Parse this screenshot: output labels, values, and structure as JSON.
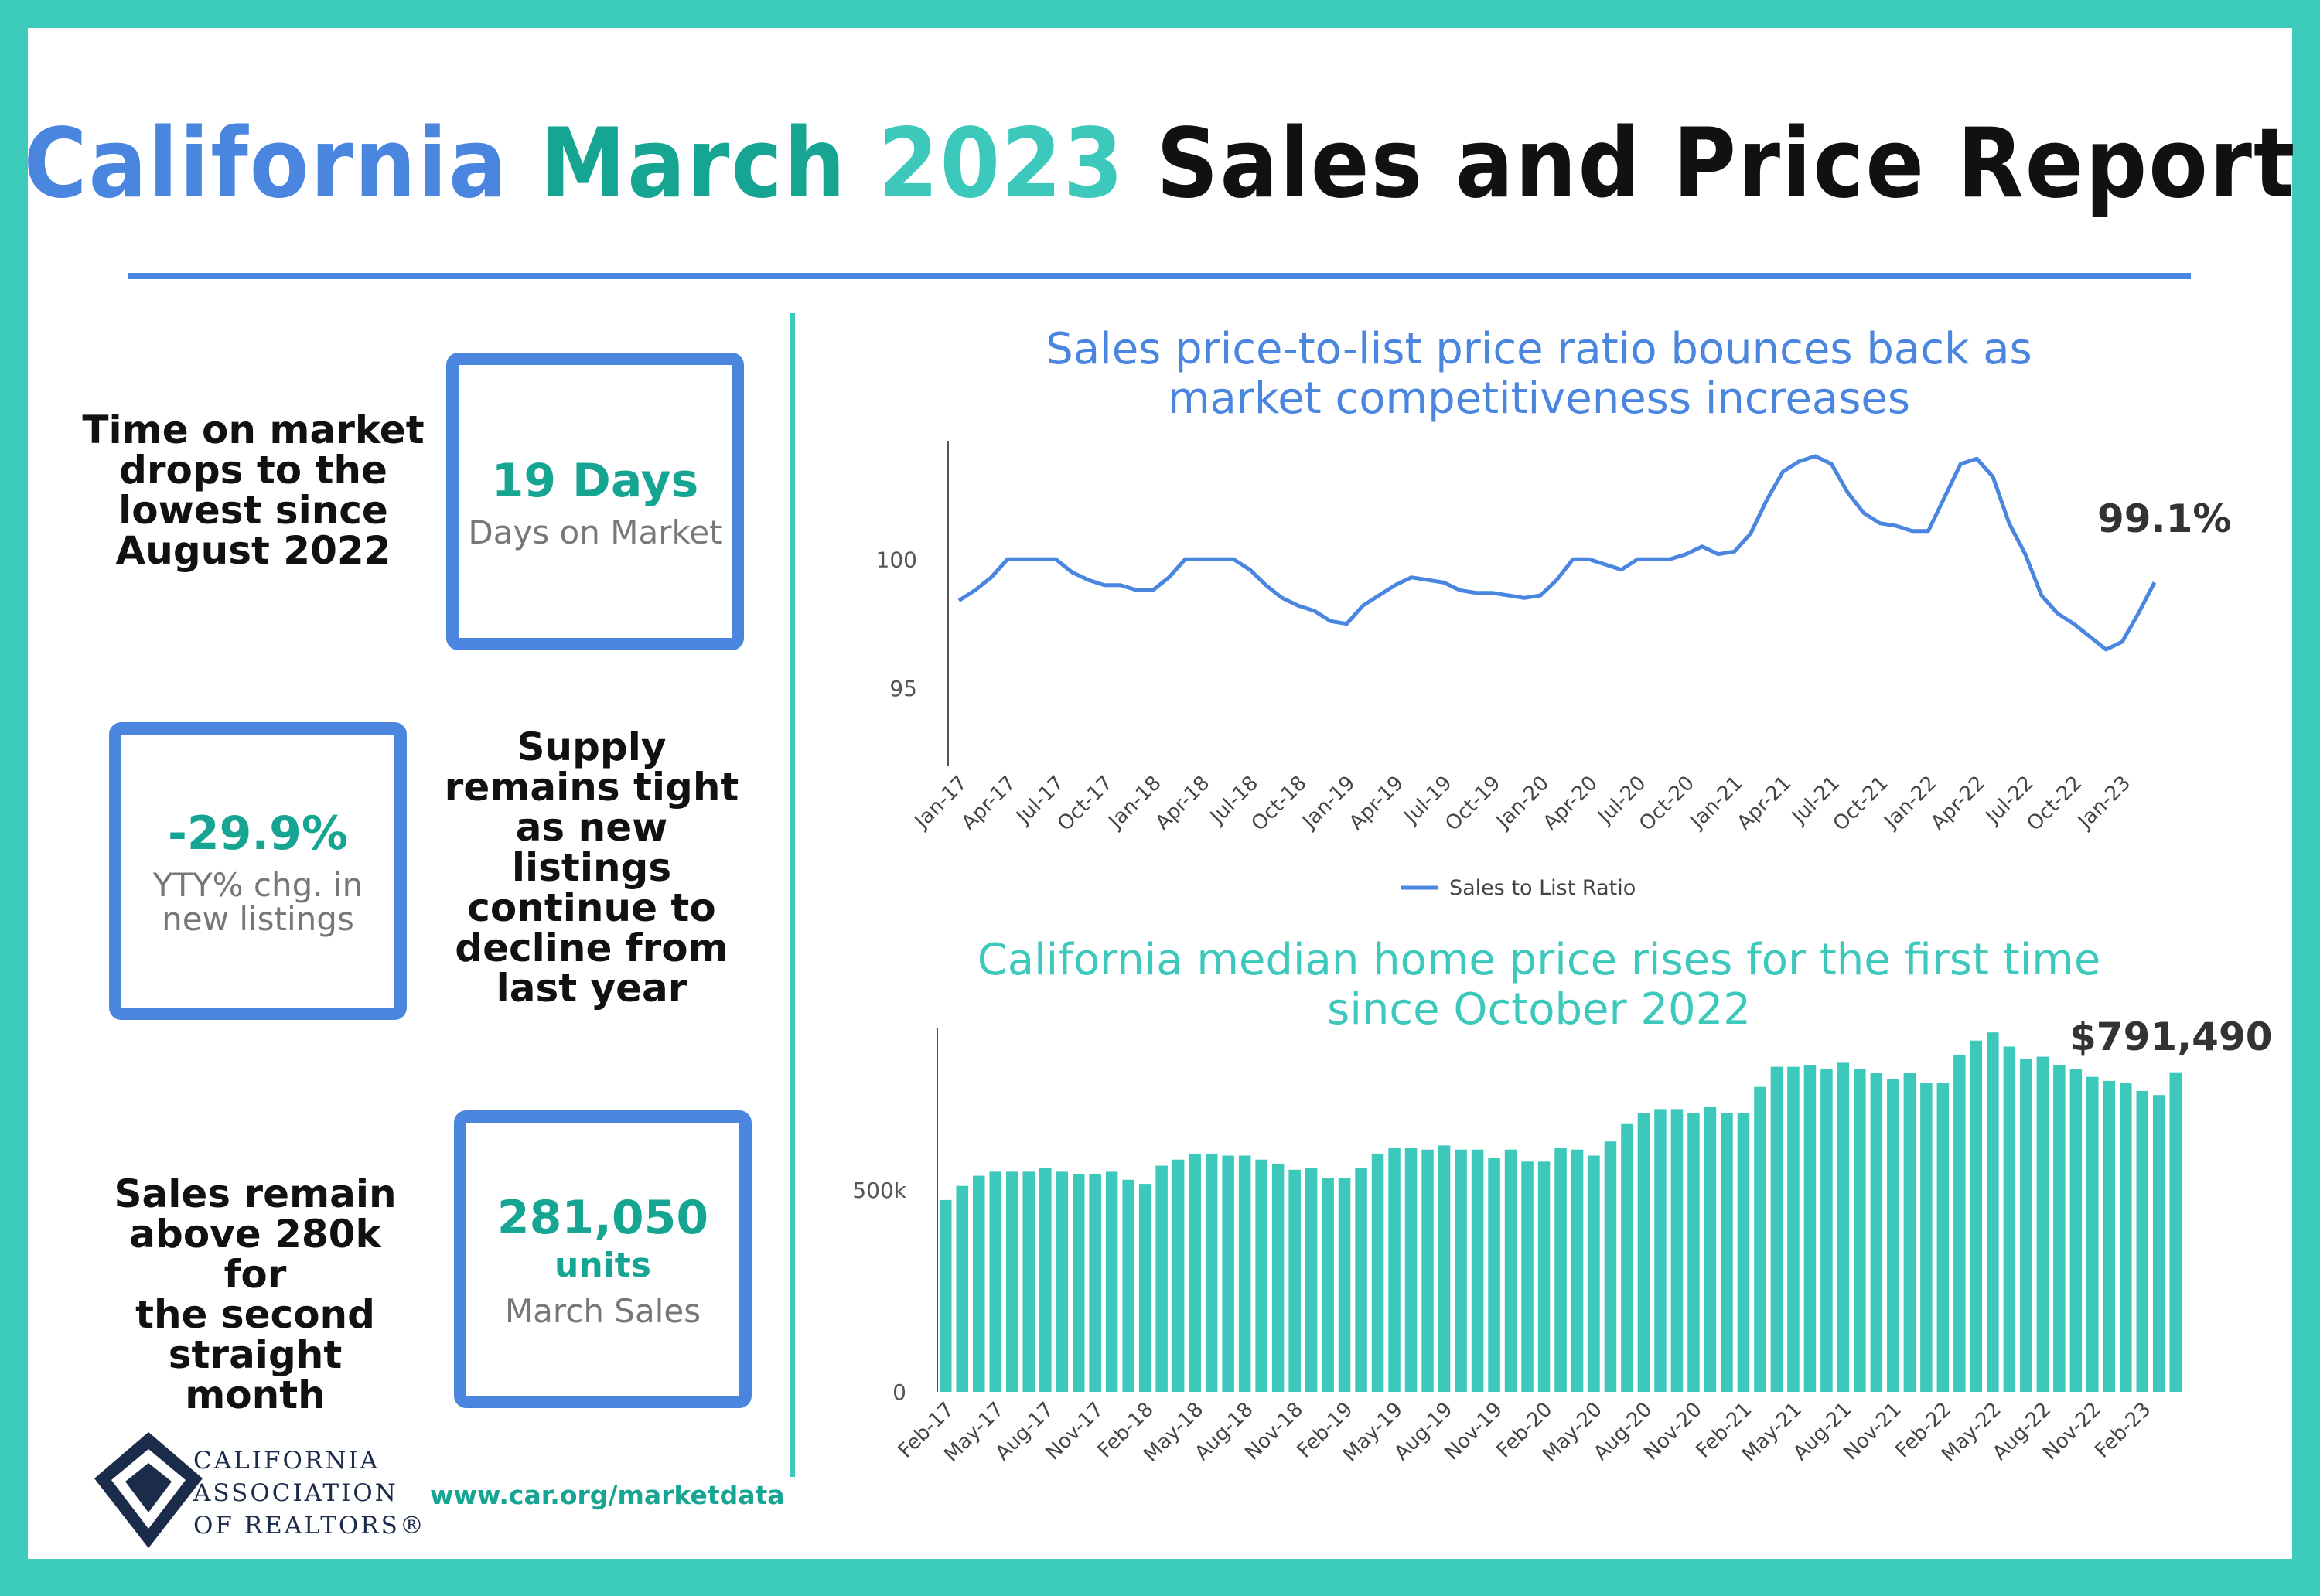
{
  "title": {
    "part1": "California",
    "part2": "March",
    "part3": "2023",
    "part4": "Sales and Price Report"
  },
  "stats": [
    {
      "blurb": [
        "Time on market",
        "drops to the",
        "lowest since",
        "August 2022"
      ],
      "value": "19 Days",
      "unit": "",
      "label": [
        "Days on Market"
      ]
    },
    {
      "blurb": [
        "Supply",
        "remains tight",
        "as new",
        "listings",
        "continue to",
        "decline from",
        "last year"
      ],
      "value": "-29.9%",
      "unit": "",
      "label": [
        "YTY% chg. in",
        "new listings"
      ]
    },
    {
      "blurb": [
        "Sales remain",
        "above 280k for",
        "the second",
        "straight",
        "month"
      ],
      "value": "281,050",
      "unit": "units",
      "label": [
        "March Sales"
      ]
    }
  ],
  "footer": {
    "logo_lines": [
      "CALIFORNIA",
      "ASSOCIATION",
      "OF REALTORS®"
    ],
    "url": "www.car.org/marketdata"
  },
  "colors": {
    "frame": "#3dcbbc",
    "blue": "#4a86e0",
    "teal_dark": "#17a593",
    "teal": "#3cc8bb"
  },
  "chart_data": [
    {
      "type": "line",
      "title_lines": [
        "Sales price-to-list price ratio bounces back as",
        "market competitiveness increases"
      ],
      "callout": "99.1%",
      "legend": "Sales to List Ratio",
      "legend_position": "bottom",
      "ylim": [
        92,
        104.6
      ],
      "yticks": [
        95,
        100
      ],
      "xtick_labels": [
        "Jan-17",
        "Apr-17",
        "Jul-17",
        "Oct-17",
        "Jan-18",
        "Apr-18",
        "Jul-18",
        "Oct-18",
        "Jan-19",
        "Apr-19",
        "Jul-19",
        "Oct-19",
        "Jan-20",
        "Apr-20",
        "Jul-20",
        "Oct-20",
        "Jan-21",
        "Apr-21",
        "Jul-21",
        "Oct-21",
        "Jan-22",
        "Apr-22",
        "Jul-22",
        "Oct-22",
        "Jan-23"
      ],
      "series": [
        {
          "values": [
            98.4,
            98.8,
            99.3,
            100.0,
            100.0,
            100.0,
            100.0,
            99.5,
            99.2,
            99.0,
            99.0,
            98.8,
            98.8,
            99.3,
            100.0,
            100.0,
            100.0,
            100.0,
            99.6,
            99.0,
            98.5,
            98.2,
            98.0,
            97.6,
            97.5,
            98.2,
            98.6,
            99.0,
            99.3,
            99.2,
            99.1,
            98.8,
            98.7,
            98.7,
            98.6,
            98.5,
            98.6,
            99.2,
            100.0,
            100.0,
            99.8,
            99.6,
            100.0,
            100.0,
            100.0,
            100.2,
            100.5,
            100.2,
            100.3,
            101.0,
            102.3,
            103.4,
            103.8,
            104.0,
            103.7,
            102.6,
            101.8,
            101.4,
            101.3,
            101.1,
            101.1,
            102.4,
            103.7,
            103.9,
            103.2,
            101.4,
            100.2,
            98.6,
            97.9,
            97.5,
            97.0,
            96.5,
            96.8,
            97.9,
            99.1
          ]
        }
      ]
    },
    {
      "type": "bar",
      "title_lines": [
        "California median home price rises for the first time",
        "since October 2022"
      ],
      "callout": "$791,490",
      "ylim": [
        0,
        900000
      ],
      "yticks": [
        0,
        500000
      ],
      "ytick_labels": [
        "0",
        "500k"
      ],
      "xtick_labels": [
        "Feb-17",
        "May-17",
        "Aug-17",
        "Nov-17",
        "Feb-18",
        "May-18",
        "Aug-18",
        "Nov-18",
        "Feb-19",
        "May-19",
        "Aug-19",
        "Nov-19",
        "Feb-20",
        "May-20",
        "Aug-20",
        "Nov-20",
        "Feb-21",
        "May-21",
        "Aug-21",
        "Nov-21",
        "Feb-22",
        "May-22",
        "Aug-22",
        "Nov-22",
        "Feb-23"
      ],
      "series": [
        {
          "values": [
            475000,
            510000,
            535000,
            545000,
            545000,
            545000,
            555000,
            545000,
            540000,
            540000,
            545000,
            525000,
            515000,
            560000,
            575000,
            590000,
            590000,
            585000,
            585000,
            575000,
            565000,
            550000,
            555000,
            530000,
            530000,
            555000,
            590000,
            605000,
            605000,
            600000,
            610000,
            600000,
            600000,
            580000,
            600000,
            570000,
            570000,
            605000,
            600000,
            585000,
            620000,
            665000,
            690000,
            700000,
            700000,
            690000,
            705000,
            690000,
            690000,
            755000,
            805000,
            805000,
            810000,
            800000,
            815000,
            800000,
            790000,
            775000,
            790000,
            765000,
            765000,
            835000,
            870000,
            890000,
            855000,
            825000,
            830000,
            810000,
            800000,
            780000,
            770000,
            765000,
            745000,
            735000,
            791490
          ]
        }
      ]
    }
  ]
}
